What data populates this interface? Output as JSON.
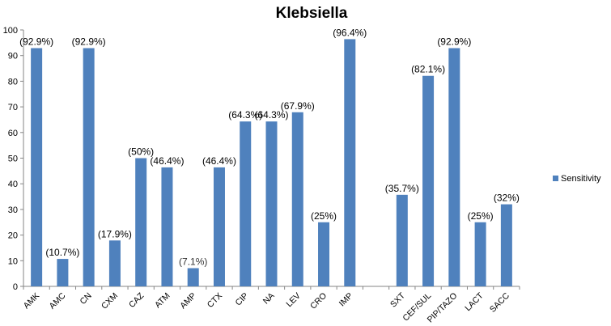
{
  "chart_data": {
    "type": "bar",
    "title": "Klebsiella",
    "xlabel": "",
    "ylabel": "",
    "ylim": [
      0,
      100
    ],
    "yticks": [
      0,
      10,
      20,
      30,
      40,
      50,
      60,
      70,
      80,
      90,
      100
    ],
    "grid": false,
    "legend": {
      "position": "right",
      "entries": [
        "Sensitivity"
      ]
    },
    "categories": [
      "AMK",
      "AMC",
      "CN",
      "CXM",
      "CAZ",
      "ATM",
      "AMP",
      "CTX",
      "CIP",
      "NA",
      "LEV",
      "CRO",
      "IMP",
      "SXT",
      "CEF/SUL",
      "PIP/TAZO",
      "LACT",
      "SACC"
    ],
    "series": [
      {
        "name": "Sensitivity",
        "color": "#4f81bd",
        "values": [
          92.9,
          10.7,
          92.9,
          17.9,
          50,
          46.4,
          7.1,
          46.4,
          64.3,
          64.3,
          67.9,
          25,
          96.4,
          35.7,
          82.1,
          92.9,
          25,
          32
        ],
        "data_labels": [
          "(92.9%)",
          "(10.7%)",
          "(92.9%)",
          "(17.9%)",
          "(50%)",
          "(46.4%)",
          "(7.1%)",
          "(46.4%)",
          "(64.3%)",
          "(64.3%)",
          "(67.9%)",
          "(25%)",
          "(96.4%)",
          "(35.7%)",
          "(82.1%)",
          "(92.9%)",
          "(25%)",
          "(32%)"
        ]
      }
    ],
    "gap_slots": [
      13
    ]
  }
}
